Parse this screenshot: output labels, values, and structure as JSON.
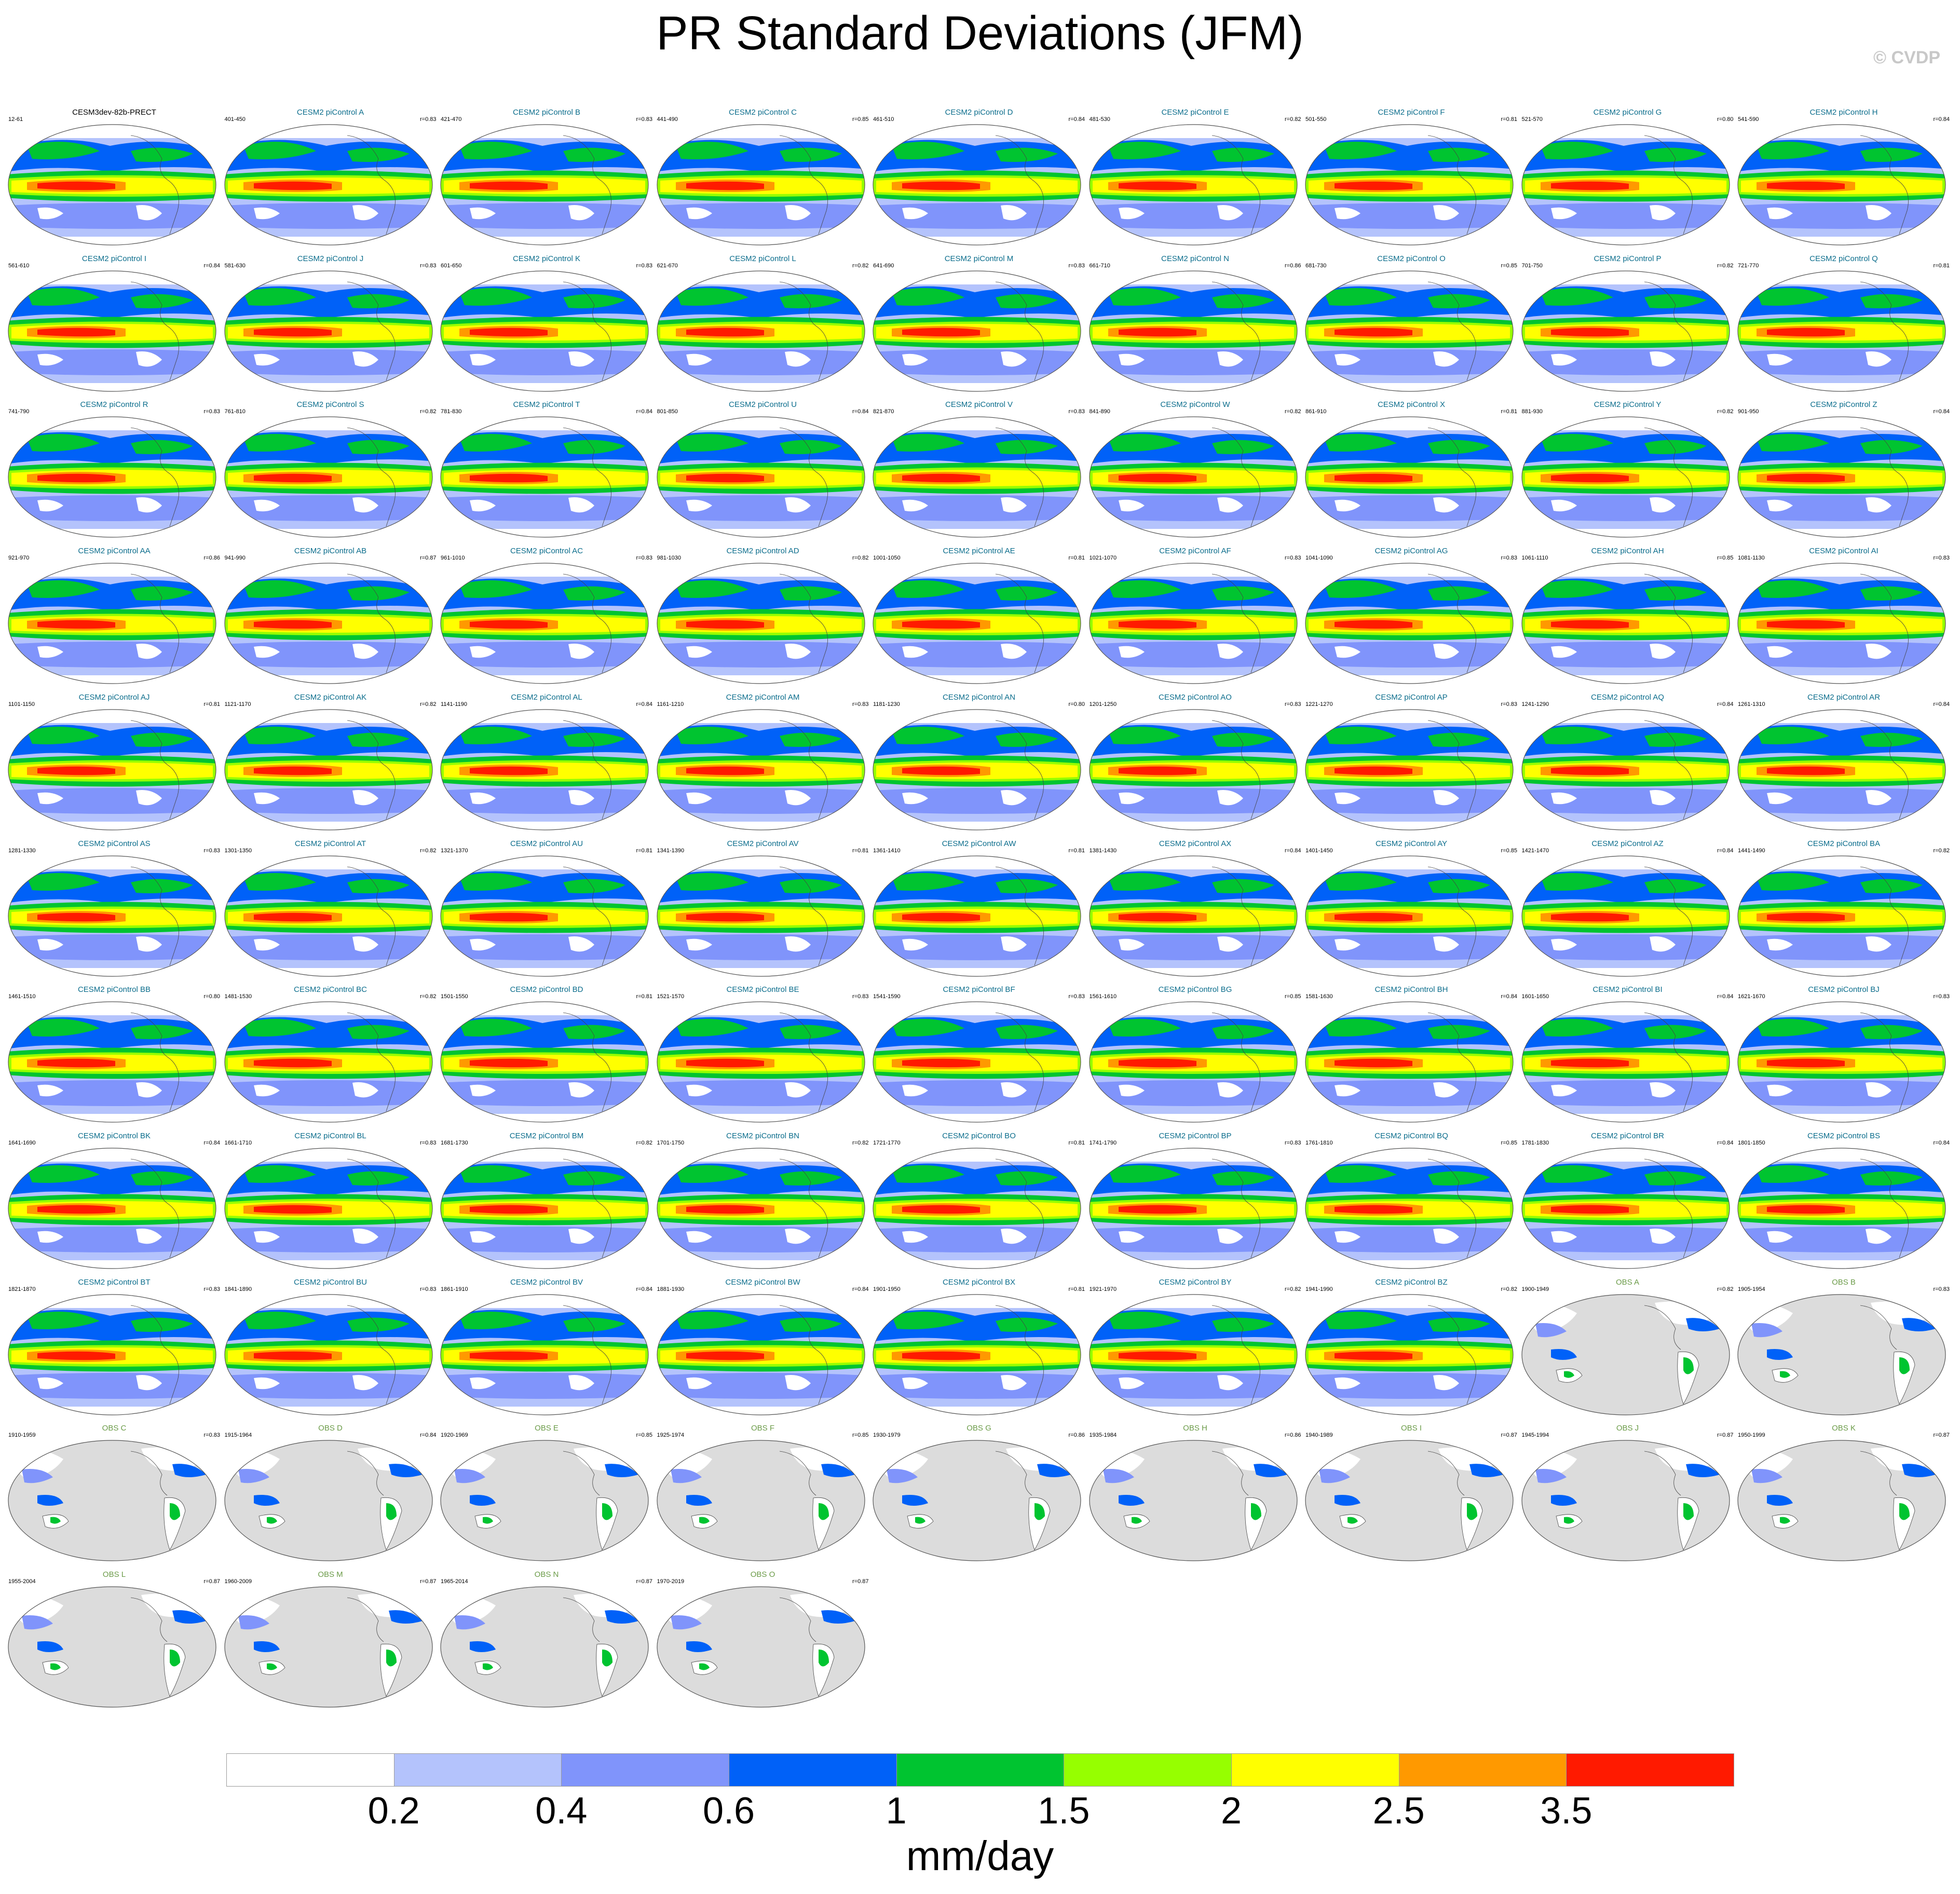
{
  "header": {
    "title": "PR Standard Deviations (JFM)",
    "copyright": "© CVDP"
  },
  "colorbar": {
    "units": "mm/day",
    "ticks": [
      "0.2",
      "0.4",
      "0.6",
      "1",
      "1.5",
      "2",
      "2.5",
      "3.5"
    ],
    "colors": [
      "#ffffff",
      "#b4c3fc",
      "#8094fb",
      "#0061f8",
      "#00c430",
      "#96ff00",
      "#ffff00",
      "#ff9900",
      "#ff1a00"
    ]
  },
  "colors": {
    "model_title": "#0b6d8c",
    "obs_title": "#6b9b48",
    "ocean_obs": "#dcdcdc",
    "land_outline": "#444444"
  },
  "chart_data": {
    "type": "heatmap",
    "title": "PR Standard Deviations (JFM)",
    "units": "mm/day",
    "levels": [
      0.2,
      0.4,
      0.6,
      1,
      1.5,
      2,
      2.5,
      3.5
    ],
    "panels": [
      {
        "title": "CESM3dev-82b-PRECT",
        "years": "12-61",
        "r": "",
        "kind": "ref"
      },
      {
        "title": "CESM2 piControl A",
        "years": "401-450",
        "r": "r=0.83",
        "kind": "model"
      },
      {
        "title": "CESM2 piControl B",
        "years": "421-470",
        "r": "r=0.83",
        "kind": "model"
      },
      {
        "title": "CESM2 piControl C",
        "years": "441-490",
        "r": "r=0.85",
        "kind": "model"
      },
      {
        "title": "CESM2 piControl D",
        "years": "461-510",
        "r": "r=0.84",
        "kind": "model"
      },
      {
        "title": "CESM2 piControl E",
        "years": "481-530",
        "r": "r=0.82",
        "kind": "model"
      },
      {
        "title": "CESM2 piControl F",
        "years": "501-550",
        "r": "r=0.81",
        "kind": "model"
      },
      {
        "title": "CESM2 piControl G",
        "years": "521-570",
        "r": "r=0.80",
        "kind": "model"
      },
      {
        "title": "CESM2 piControl H",
        "years": "541-590",
        "r": "r=0.84",
        "kind": "model"
      },
      {
        "title": "CESM2 piControl I",
        "years": "561-610",
        "r": "r=0.84",
        "kind": "model"
      },
      {
        "title": "CESM2 piControl J",
        "years": "581-630",
        "r": "r=0.83",
        "kind": "model"
      },
      {
        "title": "CESM2 piControl K",
        "years": "601-650",
        "r": "r=0.83",
        "kind": "model"
      },
      {
        "title": "CESM2 piControl L",
        "years": "621-670",
        "r": "r=0.82",
        "kind": "model"
      },
      {
        "title": "CESM2 piControl M",
        "years": "641-690",
        "r": "r=0.83",
        "kind": "model"
      },
      {
        "title": "CESM2 piControl N",
        "years": "661-710",
        "r": "r=0.86",
        "kind": "model"
      },
      {
        "title": "CESM2 piControl O",
        "years": "681-730",
        "r": "r=0.85",
        "kind": "model"
      },
      {
        "title": "CESM2 piControl P",
        "years": "701-750",
        "r": "r=0.82",
        "kind": "model"
      },
      {
        "title": "CESM2 piControl Q",
        "years": "721-770",
        "r": "r=0.81",
        "kind": "model"
      },
      {
        "title": "CESM2 piControl R",
        "years": "741-790",
        "r": "r=0.83",
        "kind": "model"
      },
      {
        "title": "CESM2 piControl S",
        "years": "761-810",
        "r": "r=0.82",
        "kind": "model"
      },
      {
        "title": "CESM2 piControl T",
        "years": "781-830",
        "r": "r=0.84",
        "kind": "model"
      },
      {
        "title": "CESM2 piControl U",
        "years": "801-850",
        "r": "r=0.84",
        "kind": "model"
      },
      {
        "title": "CESM2 piControl V",
        "years": "821-870",
        "r": "r=0.83",
        "kind": "model"
      },
      {
        "title": "CESM2 piControl W",
        "years": "841-890",
        "r": "r=0.82",
        "kind": "model"
      },
      {
        "title": "CESM2 piControl X",
        "years": "861-910",
        "r": "r=0.81",
        "kind": "model"
      },
      {
        "title": "CESM2 piControl Y",
        "years": "881-930",
        "r": "r=0.82",
        "kind": "model"
      },
      {
        "title": "CESM2 piControl Z",
        "years": "901-950",
        "r": "r=0.84",
        "kind": "model"
      },
      {
        "title": "CESM2 piControl AA",
        "years": "921-970",
        "r": "r=0.86",
        "kind": "model"
      },
      {
        "title": "CESM2 piControl AB",
        "years": "941-990",
        "r": "r=0.87",
        "kind": "model"
      },
      {
        "title": "CESM2 piControl AC",
        "years": "961-1010",
        "r": "r=0.83",
        "kind": "model"
      },
      {
        "title": "CESM2 piControl AD",
        "years": "981-1030",
        "r": "r=0.82",
        "kind": "model"
      },
      {
        "title": "CESM2 piControl AE",
        "years": "1001-1050",
        "r": "r=0.81",
        "kind": "model"
      },
      {
        "title": "CESM2 piControl AF",
        "years": "1021-1070",
        "r": "r=0.83",
        "kind": "model"
      },
      {
        "title": "CESM2 piControl AG",
        "years": "1041-1090",
        "r": "r=0.83",
        "kind": "model"
      },
      {
        "title": "CESM2 piControl AH",
        "years": "1061-1110",
        "r": "r=0.85",
        "kind": "model"
      },
      {
        "title": "CESM2 piControl AI",
        "years": "1081-1130",
        "r": "r=0.83",
        "kind": "model"
      },
      {
        "title": "CESM2 piControl AJ",
        "years": "1101-1150",
        "r": "r=0.81",
        "kind": "model"
      },
      {
        "title": "CESM2 piControl AK",
        "years": "1121-1170",
        "r": "r=0.82",
        "kind": "model"
      },
      {
        "title": "CESM2 piControl AL",
        "years": "1141-1190",
        "r": "r=0.84",
        "kind": "model"
      },
      {
        "title": "CESM2 piControl AM",
        "years": "1161-1210",
        "r": "r=0.83",
        "kind": "model"
      },
      {
        "title": "CESM2 piControl AN",
        "years": "1181-1230",
        "r": "r=0.80",
        "kind": "model"
      },
      {
        "title": "CESM2 piControl AO",
        "years": "1201-1250",
        "r": "r=0.83",
        "kind": "model"
      },
      {
        "title": "CESM2 piControl AP",
        "years": "1221-1270",
        "r": "r=0.83",
        "kind": "model"
      },
      {
        "title": "CESM2 piControl AQ",
        "years": "1241-1290",
        "r": "r=0.84",
        "kind": "model"
      },
      {
        "title": "CESM2 piControl AR",
        "years": "1261-1310",
        "r": "r=0.84",
        "kind": "model"
      },
      {
        "title": "CESM2 piControl AS",
        "years": "1281-1330",
        "r": "r=0.83",
        "kind": "model"
      },
      {
        "title": "CESM2 piControl AT",
        "years": "1301-1350",
        "r": "r=0.82",
        "kind": "model"
      },
      {
        "title": "CESM2 piControl AU",
        "years": "1321-1370",
        "r": "r=0.81",
        "kind": "model"
      },
      {
        "title": "CESM2 piControl AV",
        "years": "1341-1390",
        "r": "r=0.81",
        "kind": "model"
      },
      {
        "title": "CESM2 piControl AW",
        "years": "1361-1410",
        "r": "r=0.81",
        "kind": "model"
      },
      {
        "title": "CESM2 piControl AX",
        "years": "1381-1430",
        "r": "r=0.84",
        "kind": "model"
      },
      {
        "title": "CESM2 piControl AY",
        "years": "1401-1450",
        "r": "r=0.85",
        "kind": "model"
      },
      {
        "title": "CESM2 piControl AZ",
        "years": "1421-1470",
        "r": "r=0.84",
        "kind": "model"
      },
      {
        "title": "CESM2 piControl BA",
        "years": "1441-1490",
        "r": "r=0.82",
        "kind": "model"
      },
      {
        "title": "CESM2 piControl BB",
        "years": "1461-1510",
        "r": "r=0.80",
        "kind": "model"
      },
      {
        "title": "CESM2 piControl BC",
        "years": "1481-1530",
        "r": "r=0.82",
        "kind": "model"
      },
      {
        "title": "CESM2 piControl BD",
        "years": "1501-1550",
        "r": "r=0.81",
        "kind": "model"
      },
      {
        "title": "CESM2 piControl BE",
        "years": "1521-1570",
        "r": "r=0.83",
        "kind": "model"
      },
      {
        "title": "CESM2 piControl BF",
        "years": "1541-1590",
        "r": "r=0.83",
        "kind": "model"
      },
      {
        "title": "CESM2 piControl BG",
        "years": "1561-1610",
        "r": "r=0.85",
        "kind": "model"
      },
      {
        "title": "CESM2 piControl BH",
        "years": "1581-1630",
        "r": "r=0.84",
        "kind": "model"
      },
      {
        "title": "CESM2 piControl BI",
        "years": "1601-1650",
        "r": "r=0.84",
        "kind": "model"
      },
      {
        "title": "CESM2 piControl BJ",
        "years": "1621-1670",
        "r": "r=0.83",
        "kind": "model"
      },
      {
        "title": "CESM2 piControl BK",
        "years": "1641-1690",
        "r": "r=0.84",
        "kind": "model"
      },
      {
        "title": "CESM2 piControl BL",
        "years": "1661-1710",
        "r": "r=0.83",
        "kind": "model"
      },
      {
        "title": "CESM2 piControl BM",
        "years": "1681-1730",
        "r": "r=0.82",
        "kind": "model"
      },
      {
        "title": "CESM2 piControl BN",
        "years": "1701-1750",
        "r": "r=0.82",
        "kind": "model"
      },
      {
        "title": "CESM2 piControl BO",
        "years": "1721-1770",
        "r": "r=0.81",
        "kind": "model"
      },
      {
        "title": "CESM2 piControl BP",
        "years": "1741-1790",
        "r": "r=0.83",
        "kind": "model"
      },
      {
        "title": "CESM2 piControl BQ",
        "years": "1761-1810",
        "r": "r=0.85",
        "kind": "model"
      },
      {
        "title": "CESM2 piControl BR",
        "years": "1781-1830",
        "r": "r=0.84",
        "kind": "model"
      },
      {
        "title": "CESM2 piControl BS",
        "years": "1801-1850",
        "r": "r=0.84",
        "kind": "model"
      },
      {
        "title": "CESM2 piControl BT",
        "years": "1821-1870",
        "r": "r=0.83",
        "kind": "model"
      },
      {
        "title": "CESM2 piControl BU",
        "years": "1841-1890",
        "r": "r=0.83",
        "kind": "model"
      },
      {
        "title": "CESM2 piControl BV",
        "years": "1861-1910",
        "r": "r=0.84",
        "kind": "model"
      },
      {
        "title": "CESM2 piControl BW",
        "years": "1881-1930",
        "r": "r=0.84",
        "kind": "model"
      },
      {
        "title": "CESM2 piControl BX",
        "years": "1901-1950",
        "r": "r=0.81",
        "kind": "model"
      },
      {
        "title": "CESM2 piControl BY",
        "years": "1921-1970",
        "r": "r=0.82",
        "kind": "model"
      },
      {
        "title": "CESM2 piControl BZ",
        "years": "1941-1990",
        "r": "r=0.82",
        "kind": "model"
      },
      {
        "title": "OBS A",
        "years": "1900-1949",
        "r": "r=0.82",
        "kind": "obs"
      },
      {
        "title": "OBS B",
        "years": "1905-1954",
        "r": "r=0.83",
        "kind": "obs"
      },
      {
        "title": "OBS C",
        "years": "1910-1959",
        "r": "r=0.83",
        "kind": "obs"
      },
      {
        "title": "OBS D",
        "years": "1915-1964",
        "r": "r=0.84",
        "kind": "obs"
      },
      {
        "title": "OBS E",
        "years": "1920-1969",
        "r": "r=0.85",
        "kind": "obs"
      },
      {
        "title": "OBS F",
        "years": "1925-1974",
        "r": "r=0.85",
        "kind": "obs"
      },
      {
        "title": "OBS G",
        "years": "1930-1979",
        "r": "r=0.86",
        "kind": "obs"
      },
      {
        "title": "OBS H",
        "years": "1935-1984",
        "r": "r=0.86",
        "kind": "obs"
      },
      {
        "title": "OBS I",
        "years": "1940-1989",
        "r": "r=0.87",
        "kind": "obs"
      },
      {
        "title": "OBS J",
        "years": "1945-1994",
        "r": "r=0.87",
        "kind": "obs"
      },
      {
        "title": "OBS K",
        "years": "1950-1999",
        "r": "r=0.87",
        "kind": "obs"
      },
      {
        "title": "OBS L",
        "years": "1955-2004",
        "r": "r=0.87",
        "kind": "obs"
      },
      {
        "title": "OBS M",
        "years": "1960-2009",
        "r": "r=0.87",
        "kind": "obs"
      },
      {
        "title": "OBS N",
        "years": "1965-2014",
        "r": "r=0.87",
        "kind": "obs"
      },
      {
        "title": "OBS O",
        "years": "1970-2019",
        "r": "r=0.87",
        "kind": "obs"
      }
    ]
  }
}
